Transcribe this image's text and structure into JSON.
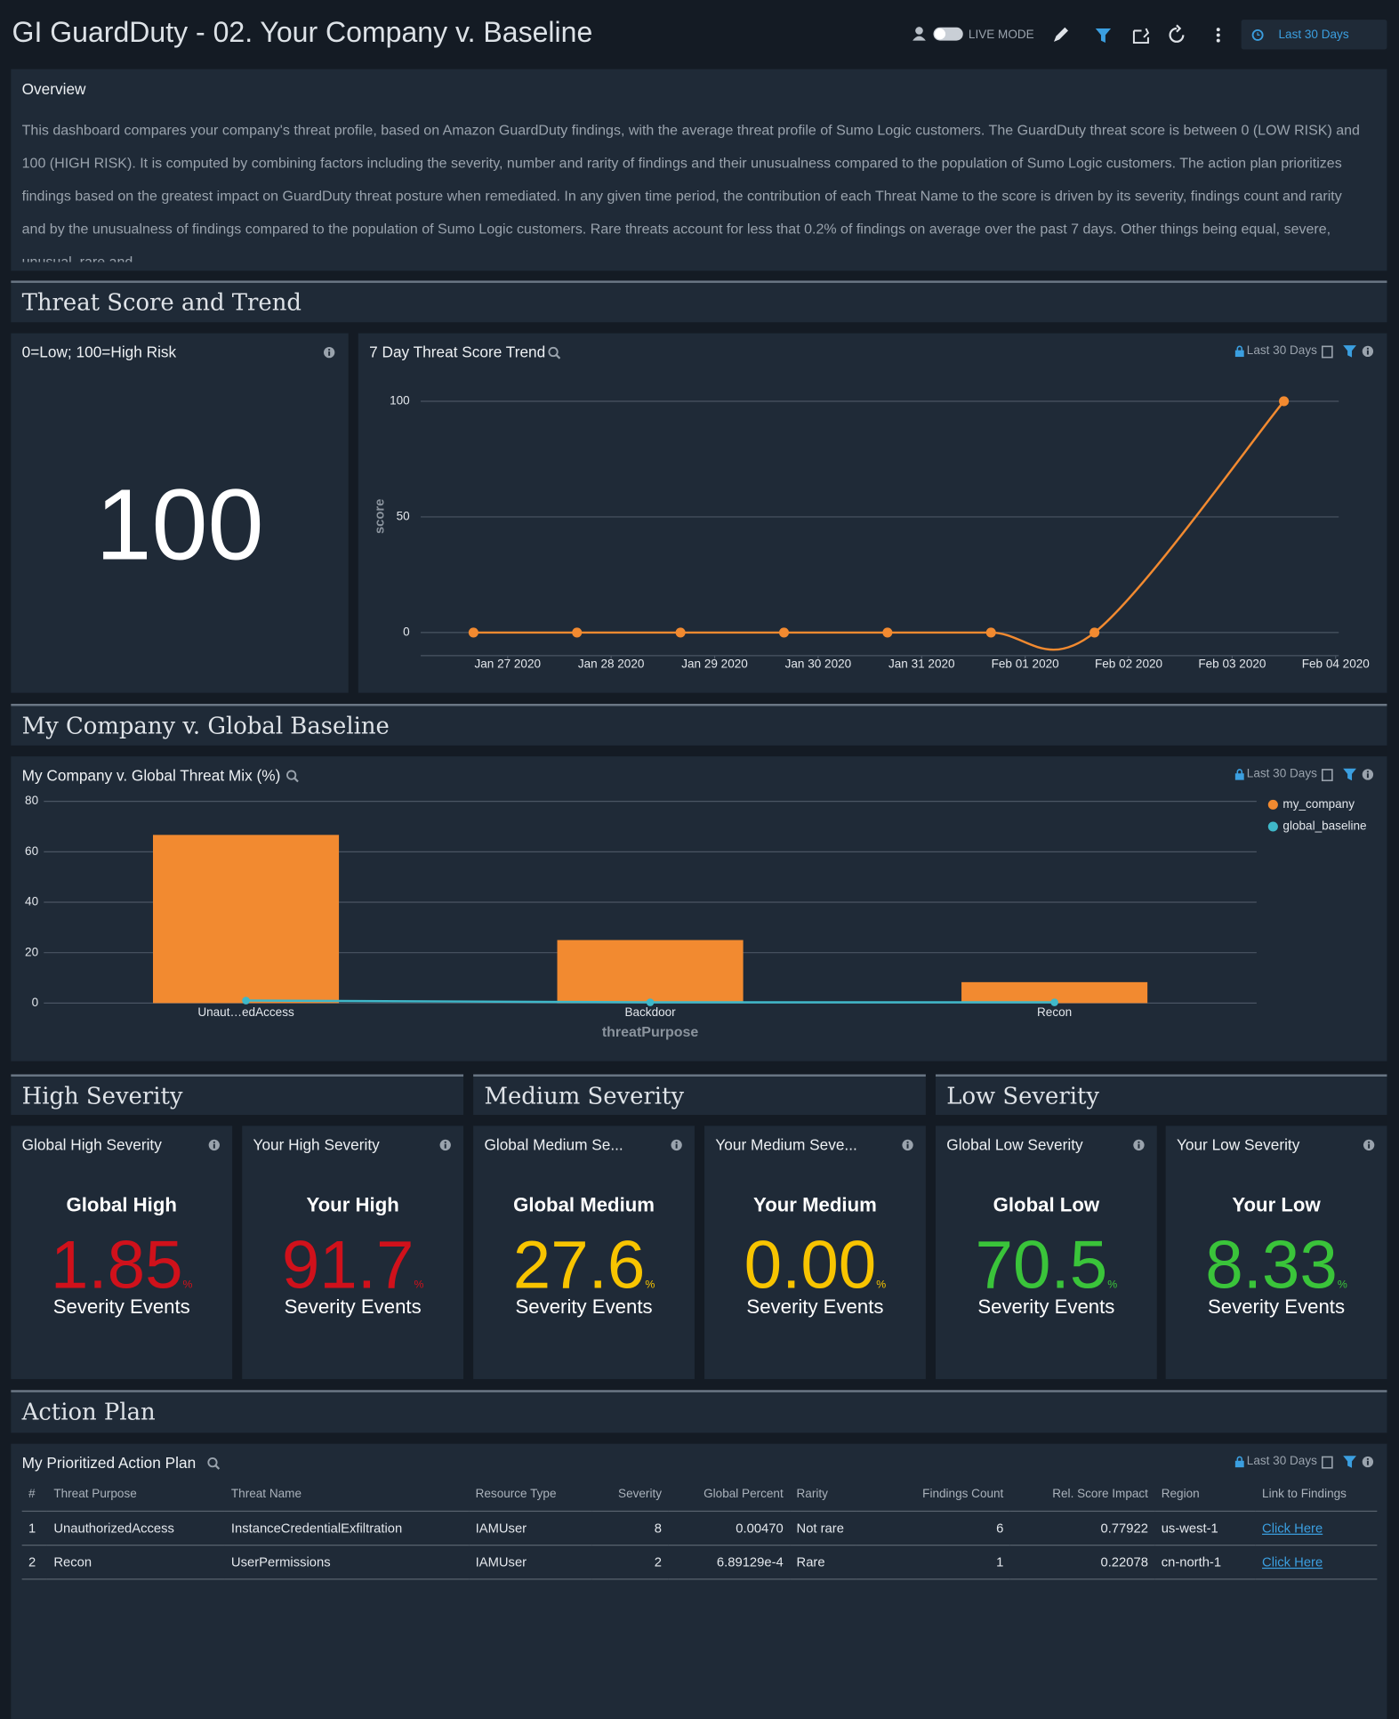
{
  "header": {
    "title": "GI GuardDuty - 02. Your Company v. Baseline",
    "live_mode": "LIVE MODE",
    "time_range": "Last 30 Days"
  },
  "overview": {
    "title": "Overview",
    "text": "This dashboard compares your company's threat profile, based on Amazon GuardDuty findings, with the average threat profile of Sumo Logic customers. The GuardDuty threat score is between 0 (LOW RISK) and 100 (HIGH RISK). It is computed by combining factors including the severity, number and rarity of findings and their unusualness compared to the population of Sumo Logic customers. The action plan prioritizes findings based on the greatest impact on GuardDuty threat posture when remediated. In any given time period, the contribution of each Threat Name to the score is driven by its severity, findings count and rarity and by the unusualness of findings compared to the population of Sumo Logic customers. Rare threats account for less that 0.2% of findings on average over the past 7 days. Other things being equal, severe, unusual, rare and"
  },
  "sections": {
    "threat_score": "Threat Score and Trend",
    "baseline": "My Company v. Global Baseline",
    "high": "High Severity",
    "medium": "Medium Severity",
    "low": "Low Severity",
    "action": "Action Plan"
  },
  "score_panel": {
    "title": "0=Low; 100=High Risk",
    "value": 100
  },
  "chart_data": [
    {
      "type": "line",
      "title": "7 Day Threat Score Trend",
      "time_range": "Last 30 Days",
      "ylabel": "score",
      "color": "#f28a30",
      "x": [
        -0.33,
        0.67,
        1.67,
        2.67,
        3.67,
        4.67,
        5.67,
        7.5
      ],
      "values": [
        0,
        0,
        0,
        0,
        0,
        0,
        0,
        100
      ],
      "xlim": [
        -0.84,
        8.03
      ],
      "xticks": [
        {
          "value": 0,
          "label": "Jan 27 2020"
        },
        {
          "value": 1,
          "label": "Jan 28 2020"
        },
        {
          "value": 2,
          "label": "Jan 29 2020"
        },
        {
          "value": 3,
          "label": "Jan 30 2020"
        },
        {
          "value": 4,
          "label": "Jan 31 2020"
        },
        {
          "value": 5,
          "label": "Feb 01 2020"
        },
        {
          "value": 6,
          "label": "Feb 02 2020"
        },
        {
          "value": 7,
          "label": "Feb 03 2020"
        },
        {
          "value": 8,
          "label": "Feb 04 2020"
        }
      ],
      "ylim": [
        -10,
        110
      ],
      "yticks": [
        0,
        50,
        100
      ],
      "grid": true
    },
    {
      "type": "bar",
      "title": "My Company v. Global Threat Mix (%)",
      "time_range": "Last 30 Days",
      "xlabel": "threatPurpose",
      "categories": [
        "Unaut…edAccess",
        "Backdoor",
        "Recon"
      ],
      "series": [
        {
          "name": "my_company",
          "color": "#f28a30",
          "type": "bar",
          "values": [
            66.7,
            25,
            8.3
          ]
        },
        {
          "name": "global_baseline",
          "color": "#3fb8c9",
          "type": "line",
          "values": [
            1,
            0.3,
            0.3
          ]
        }
      ],
      "ylim": [
        0,
        80
      ],
      "yticks": [
        0,
        20,
        40,
        60,
        80
      ],
      "grid": true,
      "legend": "right"
    }
  ],
  "severity_tiles": [
    {
      "title": "Global High Severity",
      "heading": "Global High",
      "value": "1.85",
      "unit": "%",
      "caption": "Severity Events",
      "color": "#d0111b"
    },
    {
      "title": "Your High Severity",
      "heading": "Your High",
      "value": "91.7",
      "unit": "%",
      "caption": "Severity Events",
      "color": "#d0111b"
    },
    {
      "title": "Global Medium Se...",
      "heading": "Global Medium",
      "value": "27.6",
      "unit": "%",
      "caption": "Severity Events",
      "color": "#f8c400"
    },
    {
      "title": "Your Medium Seve...",
      "heading": "Your Medium",
      "value": "0.00",
      "unit": "%",
      "caption": "Severity Events",
      "color": "#f8c400"
    },
    {
      "title": "Global Low Severity",
      "heading": "Global Low",
      "value": "70.5",
      "unit": "%",
      "caption": "Severity Events",
      "color": "#3ac43a"
    },
    {
      "title": "Your Low Severity",
      "heading": "Your Low",
      "value": "8.33",
      "unit": "%",
      "caption": "Severity Events",
      "color": "#3ac43a"
    }
  ],
  "action_plan": {
    "title": "My Prioritized Action Plan",
    "time_range": "Last 30 Days",
    "columns": [
      "#",
      "Threat Purpose",
      "Threat Name",
      "Resource Type",
      "Severity",
      "Global Percent",
      "Rarity",
      "Findings Count",
      "Rel. Score Impact",
      "Region",
      "Link to Findings"
    ],
    "rows": [
      [
        "1",
        "UnauthorizedAccess",
        "InstanceCredentialExfiltration",
        "IAMUser",
        "8",
        "0.00470",
        "Not rare",
        "6",
        "0.77922",
        "us-west-1",
        "Click Here"
      ],
      [
        "2",
        "Recon",
        "UserPermissions",
        "IAMUser",
        "2",
        "6.89129e-4",
        "Rare",
        "1",
        "0.22078",
        "cn-north-1",
        "Click Here"
      ]
    ]
  }
}
